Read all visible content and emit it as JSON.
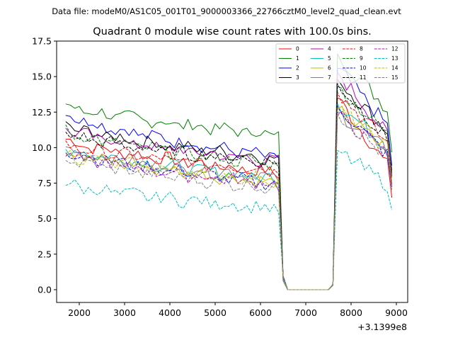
{
  "suptitle": "Data file: modeM0/AS1C05_001T01_9000003366_22766cztM0_level2_quad_clean.evt",
  "chart_data": {
    "type": "line",
    "title": "Quadrant 0 module wise count rates with 100.0s bins.",
    "xlabel": "",
    "ylabel": "",
    "x_offset_label": "+3.1399e8",
    "xlim": [
      1500,
      9250
    ],
    "ylim": [
      -0.9,
      17.5
    ],
    "xticks": [
      2000,
      3000,
      4000,
      5000,
      6000,
      7000,
      8000,
      9000
    ],
    "yticks": [
      0.0,
      2.5,
      5.0,
      7.5,
      10.0,
      12.5,
      15.0,
      17.5
    ],
    "xtick_labels": [
      "2000",
      "3000",
      "4000",
      "5000",
      "6000",
      "7000",
      "8000",
      "9000"
    ],
    "ytick_labels": [
      "0.0",
      "2.5",
      "5.0",
      "7.5",
      "10.0",
      "12.5",
      "15.0",
      "17.5"
    ],
    "legend_position": "upper right",
    "legend_columns": 4,
    "x_start": 1700,
    "x_step": 100,
    "gap_start": 6500,
    "gap_end": 7600,
    "series": [
      {
        "name": "0",
        "color": "#ff0000",
        "dash": "solid",
        "pre": [
          10.6,
          8.2
        ],
        "post": [
          13.5,
          8.3
        ]
      },
      {
        "name": "1",
        "color": "#008000",
        "dash": "solid",
        "pre": [
          13.0,
          10.9
        ],
        "post": [
          16.6,
          12.4
        ]
      },
      {
        "name": "2",
        "color": "#0000ff",
        "dash": "solid",
        "pre": [
          12.5,
          9.3
        ],
        "post": [
          15.6,
          11.2
        ]
      },
      {
        "name": "3",
        "color": "#000000",
        "dash": "solid",
        "pre": [
          11.6,
          9.2
        ],
        "post": [
          14.8,
          10.8
        ]
      },
      {
        "name": "4",
        "color": "#bf00bf",
        "dash": "solid",
        "pre": [
          11.3,
          9.0
        ],
        "post": [
          15.3,
          10.5
        ]
      },
      {
        "name": "5",
        "color": "#00bfbf",
        "dash": "solid",
        "pre": [
          10.0,
          7.8
        ],
        "post": [
          13.1,
          9.8
        ]
      },
      {
        "name": "6",
        "color": "#bfbf00",
        "dash": "solid",
        "pre": [
          9.8,
          7.5
        ],
        "post": [
          12.7,
          9.6
        ]
      },
      {
        "name": "7",
        "color": "#808080",
        "dash": "solid",
        "pre": [
          9.9,
          7.9
        ],
        "post": [
          12.5,
          9.5
        ]
      },
      {
        "name": "8",
        "color": "#ff0000",
        "dash": "dashed",
        "pre": [
          10.2,
          8.4
        ],
        "post": [
          13.9,
          10.0
        ]
      },
      {
        "name": "9",
        "color": "#008000",
        "dash": "dashed",
        "pre": [
          11.2,
          8.8
        ],
        "post": [
          14.3,
          10.6
        ]
      },
      {
        "name": "10",
        "color": "#0000ff",
        "dash": "dashed",
        "pre": [
          9.9,
          7.4
        ],
        "post": [
          12.9,
          9.2
        ]
      },
      {
        "name": "11",
        "color": "#000000",
        "dash": "dashed",
        "pre": [
          11.0,
          8.9
        ],
        "post": [
          14.5,
          10.2
        ]
      },
      {
        "name": "12",
        "color": "#bf00bf",
        "dash": "dashed",
        "pre": [
          9.5,
          7.4
        ],
        "post": [
          12.3,
          9.3
        ]
      },
      {
        "name": "13",
        "color": "#00bfbf",
        "dash": "dashed",
        "pre": [
          7.5,
          5.7
        ],
        "post": [
          9.8,
          7.2
        ]
      },
      {
        "name": "14",
        "color": "#bfbf00",
        "dash": "dashed",
        "pre": [
          9.6,
          7.7
        ],
        "post": [
          12.8,
          9.7
        ]
      },
      {
        "name": "15",
        "color": "#808080",
        "dash": "dashed",
        "pre": [
          9.3,
          7.1
        ],
        "post": [
          12.4,
          9.0
        ]
      }
    ]
  }
}
